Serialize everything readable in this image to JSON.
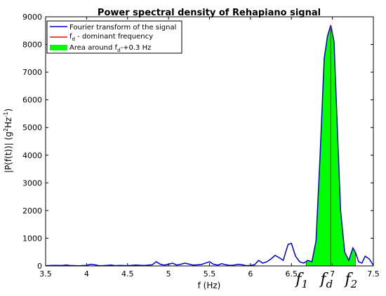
{
  "chart_data": {
    "type": "line",
    "title": "Power spectral density of Rehapiano signal",
    "xlabel": "f (Hz)",
    "ylabel": {
      "main": "|P(f(t))| (g",
      "sup1": "2",
      "mid": "Hz",
      "sup2": "-1",
      "end": ")"
    },
    "xlim": [
      3.5,
      7.5
    ],
    "ylim": [
      0,
      9000
    ],
    "x_ticks": [
      3.5,
      4,
      4.5,
      5,
      5.5,
      6,
      6.5,
      7,
      7.5
    ],
    "x_tick_labels": [
      "3.5",
      "4",
      "4.5",
      "5",
      "5.5",
      "6",
      "6.5",
      "7",
      "7.5"
    ],
    "y_ticks": [
      0,
      1000,
      2000,
      3000,
      4000,
      5000,
      6000,
      7000,
      8000,
      9000
    ],
    "y_tick_labels": [
      "0",
      "1000",
      "2000",
      "3000",
      "4000",
      "5000",
      "6000",
      "7000",
      "8000",
      "9000"
    ],
    "grid": false,
    "legend_placement": "top-left",
    "legend": [
      {
        "label": "Fourier transform of the signal",
        "kind": "line",
        "color": "#0000cc"
      },
      {
        "label_main": "f",
        "label_sub": "d",
        "label_rest": " - dominant frequency",
        "kind": "line",
        "color": "#ff0000"
      },
      {
        "label_main": "Area around f",
        "label_sub": "d",
        "label_rest": "-+0.3 Hz",
        "kind": "patch",
        "color": "#00ff00"
      }
    ],
    "dominant_frequency": 6.98,
    "area_range": [
      6.68,
      7.28
    ],
    "annotations": [
      {
        "main": "f",
        "sub": "1",
        "x": 6.68
      },
      {
        "main": "f",
        "sub": "d",
        "x": 6.98
      },
      {
        "main": "f",
        "sub": "2",
        "x": 7.28
      }
    ],
    "series": [
      {
        "name": "Fourier transform of the signal",
        "color": "#0000cc",
        "x": [
          3.5,
          3.6,
          3.7,
          3.75,
          3.8,
          3.9,
          4.0,
          4.05,
          4.1,
          4.15,
          4.2,
          4.3,
          4.35,
          4.4,
          4.5,
          4.6,
          4.7,
          4.8,
          4.85,
          4.9,
          4.95,
          5.0,
          5.05,
          5.1,
          5.15,
          5.2,
          5.3,
          5.4,
          5.45,
          5.5,
          5.55,
          5.6,
          5.65,
          5.7,
          5.75,
          5.8,
          5.85,
          5.9,
          5.95,
          6.0,
          6.05,
          6.1,
          6.15,
          6.2,
          6.25,
          6.3,
          6.35,
          6.4,
          6.43,
          6.46,
          6.5,
          6.55,
          6.6,
          6.65,
          6.7,
          6.75,
          6.8,
          6.85,
          6.9,
          6.94,
          6.98,
          7.02,
          7.06,
          7.1,
          7.15,
          7.2,
          7.25,
          7.28,
          7.32,
          7.36,
          7.4,
          7.45,
          7.5
        ],
        "y": [
          10,
          20,
          15,
          30,
          15,
          5,
          20,
          60,
          40,
          10,
          10,
          30,
          10,
          20,
          10,
          30,
          15,
          40,
          150,
          60,
          30,
          60,
          100,
          30,
          60,
          100,
          30,
          50,
          100,
          150,
          60,
          30,
          80,
          40,
          20,
          30,
          60,
          40,
          10,
          20,
          40,
          200,
          100,
          150,
          250,
          380,
          300,
          200,
          500,
          780,
          810,
          350,
          150,
          100,
          200,
          150,
          900,
          4000,
          7500,
          8300,
          8700,
          8100,
          5000,
          2000,
          500,
          200,
          650,
          500,
          150,
          100,
          350,
          250,
          20
        ]
      }
    ]
  }
}
